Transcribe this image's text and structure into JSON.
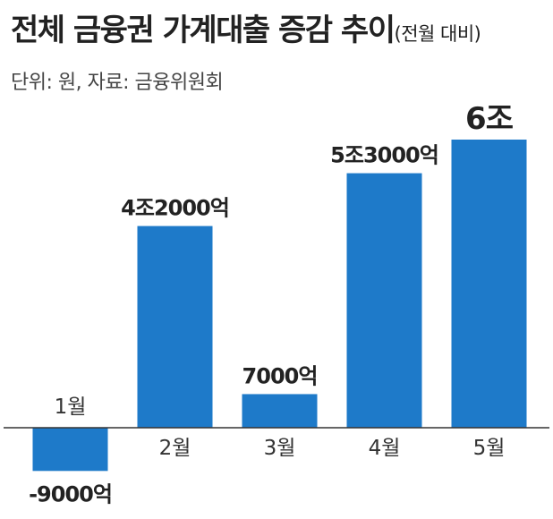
{
  "header": {
    "title": "전체 금융권 가계대출 증감 추이",
    "title_suffix": "(전월 대비)",
    "source": "단위: 원, 자료: 금융위원회"
  },
  "colors": {
    "bar": "#1e7ac9",
    "axis": "#333333"
  },
  "chart_data": {
    "type": "bar",
    "title": "전체 금융권 가계대출 증감 추이(전월 대비)",
    "unit": "원",
    "categories": [
      "1월",
      "2월",
      "3월",
      "4월",
      "5월"
    ],
    "values": [
      -9000,
      42000,
      7000,
      53000,
      60000
    ],
    "value_unit": "억원",
    "data_labels": [
      "-9000억",
      "4조2000억",
      "7000억",
      "5조3000억",
      "6조"
    ],
    "highlight_index": 4,
    "ylim": [
      -9000,
      60000
    ],
    "grid": false,
    "legend": "none"
  }
}
